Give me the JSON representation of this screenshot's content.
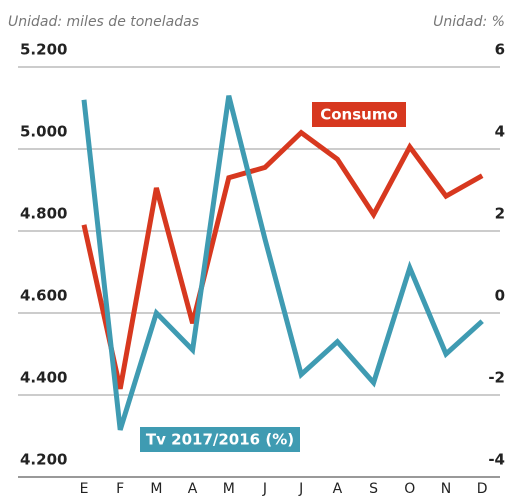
{
  "chart_data": {
    "type": "line",
    "y_unit": "Unidad: miles de toneladas",
    "y2_unit": "Unidad: %",
    "categories": [
      "E",
      "F",
      "M",
      "A",
      "M",
      "J",
      "J",
      "A",
      "S",
      "O",
      "N",
      "D"
    ],
    "series": [
      {
        "name": "Consumo",
        "color": "#d7381f",
        "axis": "y",
        "values": [
          4815,
          4415,
          4905,
          4575,
          4930,
          4955,
          5040,
          4975,
          4840,
          5005,
          4885,
          4935
        ]
      },
      {
        "name": "Tv 2017/2016 (%)",
        "color": "#3f9bb2",
        "axis": "y2",
        "values": [
          5.2,
          -2.85,
          0,
          -0.9,
          5.3,
          1.8,
          -1.5,
          -0.7,
          -1.7,
          1.1,
          -1.0,
          -0.2
        ]
      }
    ],
    "ylim": [
      4200,
      5200
    ],
    "yticks": [
      {
        "value": 4200,
        "label": "4.200"
      },
      {
        "value": 4400,
        "label": "4.400"
      },
      {
        "value": 4600,
        "label": "4.600"
      },
      {
        "value": 4800,
        "label": "4.800"
      },
      {
        "value": 5000,
        "label": "5.000"
      },
      {
        "value": 5200,
        "label": "5.200"
      }
    ],
    "y2lim": [
      -4,
      6
    ],
    "y2ticks": [
      -4,
      -2,
      0,
      2,
      4,
      6
    ],
    "grid": true
  }
}
